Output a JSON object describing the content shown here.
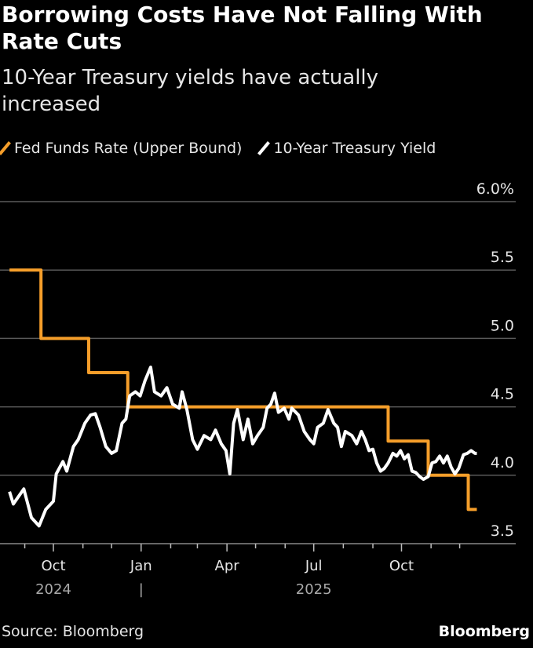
{
  "chart_data": {
    "type": "line",
    "title": "Borrowing Costs Have Not Falling With Rate Cuts",
    "subtitle": "10-Year Treasury yields have actually increased",
    "ylim": [
      3.5,
      6.0
    ],
    "y_ticks": [
      "6.0%",
      "5.5",
      "5.0",
      "4.5",
      "4.0",
      "3.5"
    ],
    "y_tick_values": [
      6.0,
      5.5,
      5.0,
      4.5,
      4.0,
      3.5
    ],
    "x_range": [
      "2024-08-16",
      "2025-12-19"
    ],
    "x_ticks": [
      {
        "date": "2024-10-01",
        "label": "Oct",
        "year": "2024"
      },
      {
        "date": "2025-01-01",
        "label": "Jan",
        "year": "|"
      },
      {
        "date": "2025-04-01",
        "label": "Apr",
        "year": ""
      },
      {
        "date": "2025-07-01",
        "label": "Jul",
        "year": "2025"
      },
      {
        "date": "2025-10-01",
        "label": "Oct",
        "year": ""
      }
    ],
    "grid": true,
    "legend_position": "top-left",
    "series": [
      {
        "name": "Fed Funds Rate (Upper Bound)",
        "color": "#f59e2a",
        "step": true,
        "points": [
          [
            "2024-08-16",
            5.5
          ],
          [
            "2024-09-18",
            5.0
          ],
          [
            "2024-11-07",
            4.75
          ],
          [
            "2024-12-18",
            4.5
          ],
          [
            "2025-09-17",
            4.25
          ],
          [
            "2025-10-29",
            4.0
          ],
          [
            "2025-12-10",
            3.75
          ],
          [
            "2025-12-19",
            3.75
          ]
        ]
      },
      {
        "name": "10-Year Treasury Yield",
        "color": "#ffffff",
        "step": false,
        "points": [
          [
            "2024-08-16",
            3.88
          ],
          [
            "2024-08-20",
            3.79
          ],
          [
            "2024-08-31",
            3.9
          ],
          [
            "2024-09-08",
            3.69
          ],
          [
            "2024-09-16",
            3.63
          ],
          [
            "2024-09-23",
            3.75
          ],
          [
            "2024-10-01",
            3.81
          ],
          [
            "2024-10-04",
            4.01
          ],
          [
            "2024-10-11",
            4.1
          ],
          [
            "2024-10-15",
            4.03
          ],
          [
            "2024-10-22",
            4.21
          ],
          [
            "2024-10-27",
            4.26
          ],
          [
            "2024-11-03",
            4.38
          ],
          [
            "2024-11-09",
            4.44
          ],
          [
            "2024-11-14",
            4.45
          ],
          [
            "2024-11-19",
            4.35
          ],
          [
            "2024-11-25",
            4.21
          ],
          [
            "2024-12-01",
            4.16
          ],
          [
            "2024-12-06",
            4.18
          ],
          [
            "2024-12-12",
            4.38
          ],
          [
            "2024-12-16",
            4.41
          ],
          [
            "2024-12-20",
            4.58
          ],
          [
            "2024-12-26",
            4.61
          ],
          [
            "2024-12-31",
            4.58
          ],
          [
            "2025-01-05",
            4.69
          ],
          [
            "2025-01-11",
            4.79
          ],
          [
            "2025-01-15",
            4.61
          ],
          [
            "2025-01-22",
            4.58
          ],
          [
            "2025-01-28",
            4.64
          ],
          [
            "2025-02-03",
            4.52
          ],
          [
            "2025-02-10",
            4.49
          ],
          [
            "2025-02-13",
            4.61
          ],
          [
            "2025-02-18",
            4.48
          ],
          [
            "2025-02-24",
            4.26
          ],
          [
            "2025-03-01",
            4.19
          ],
          [
            "2025-03-08",
            4.29
          ],
          [
            "2025-03-15",
            4.26
          ],
          [
            "2025-03-20",
            4.33
          ],
          [
            "2025-03-26",
            4.23
          ],
          [
            "2025-03-31",
            4.18
          ],
          [
            "2025-04-04",
            4.01
          ],
          [
            "2025-04-08",
            4.38
          ],
          [
            "2025-04-12",
            4.48
          ],
          [
            "2025-04-18",
            4.26
          ],
          [
            "2025-04-23",
            4.41
          ],
          [
            "2025-04-28",
            4.23
          ],
          [
            "2025-05-03",
            4.29
          ],
          [
            "2025-05-09",
            4.35
          ],
          [
            "2025-05-13",
            4.49
          ],
          [
            "2025-05-17",
            4.52
          ],
          [
            "2025-05-21",
            4.6
          ],
          [
            "2025-05-25",
            4.46
          ],
          [
            "2025-05-31",
            4.49
          ],
          [
            "2025-06-05",
            4.41
          ],
          [
            "2025-06-08",
            4.49
          ],
          [
            "2025-06-15",
            4.44
          ],
          [
            "2025-06-21",
            4.32
          ],
          [
            "2025-06-27",
            4.26
          ],
          [
            "2025-07-01",
            4.23
          ],
          [
            "2025-07-05",
            4.35
          ],
          [
            "2025-07-11",
            4.38
          ],
          [
            "2025-07-16",
            4.48
          ],
          [
            "2025-07-22",
            4.38
          ],
          [
            "2025-07-26",
            4.35
          ],
          [
            "2025-07-30",
            4.21
          ],
          [
            "2025-08-03",
            4.32
          ],
          [
            "2025-08-10",
            4.29
          ],
          [
            "2025-08-15",
            4.23
          ],
          [
            "2025-08-20",
            4.32
          ],
          [
            "2025-08-24",
            4.26
          ],
          [
            "2025-08-28",
            4.18
          ],
          [
            "2025-09-01",
            4.19
          ],
          [
            "2025-09-05",
            4.09
          ],
          [
            "2025-09-09",
            4.03
          ],
          [
            "2025-09-13",
            4.05
          ],
          [
            "2025-09-17",
            4.09
          ],
          [
            "2025-09-22",
            4.16
          ],
          [
            "2025-09-26",
            4.14
          ],
          [
            "2025-09-30",
            4.18
          ],
          [
            "2025-10-04",
            4.12
          ],
          [
            "2025-10-08",
            4.15
          ],
          [
            "2025-10-12",
            4.03
          ],
          [
            "2025-10-16",
            4.02
          ],
          [
            "2025-10-20",
            3.99
          ],
          [
            "2025-10-24",
            3.97
          ],
          [
            "2025-10-29",
            3.99
          ],
          [
            "2025-11-02",
            4.09
          ],
          [
            "2025-11-06",
            4.1
          ],
          [
            "2025-11-10",
            4.14
          ],
          [
            "2025-11-14",
            4.09
          ],
          [
            "2025-11-18",
            4.14
          ],
          [
            "2025-11-22",
            4.06
          ],
          [
            "2025-11-26",
            4.01
          ],
          [
            "2025-11-30",
            4.05
          ],
          [
            "2025-12-05",
            4.15
          ],
          [
            "2025-12-09",
            4.16
          ],
          [
            "2025-12-13",
            4.18
          ],
          [
            "2025-12-17",
            4.16
          ],
          [
            "2025-12-19",
            4.16
          ]
        ]
      }
    ],
    "source": "Source: Bloomberg",
    "logo": "Bloomberg"
  }
}
